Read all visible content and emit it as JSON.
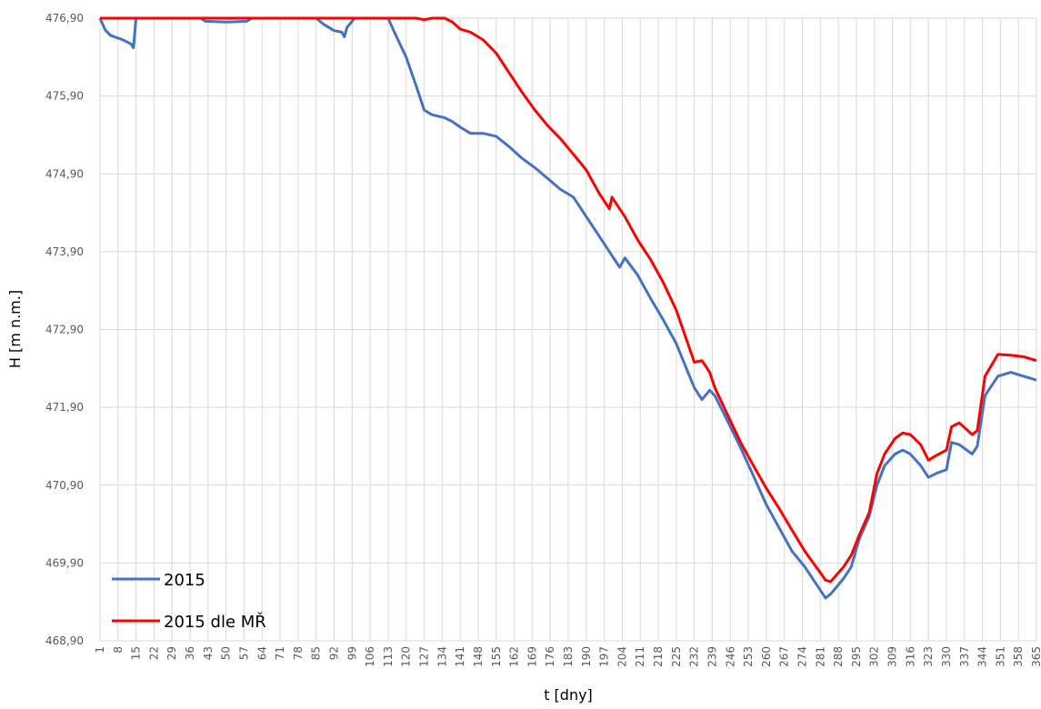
{
  "chart_data": {
    "type": "line",
    "xlabel": "t [dny]",
    "ylabel": "H [m n.m.]",
    "x": [
      1,
      3,
      5,
      10,
      13,
      14,
      15,
      30,
      40,
      42,
      50,
      58,
      60,
      85,
      88,
      92,
      95,
      96,
      97,
      100,
      113,
      115,
      120,
      124,
      127,
      130,
      135,
      138,
      141,
      145,
      150,
      155,
      160,
      165,
      170,
      175,
      180,
      185,
      190,
      195,
      199,
      200,
      203,
      205,
      210,
      215,
      220,
      225,
      232,
      235,
      238,
      240,
      245,
      250,
      255,
      260,
      265,
      270,
      275,
      280,
      283,
      285,
      290,
      293,
      296,
      300,
      303,
      306,
      310,
      313,
      316,
      320,
      323,
      326,
      330,
      332,
      335,
      340,
      342,
      345,
      350,
      355,
      360,
      365
    ],
    "series": [
      {
        "name": "2015",
        "color": "#4472c4",
        "values": [
          476.9,
          476.75,
          476.68,
          476.62,
          476.57,
          476.52,
          476.9,
          476.9,
          476.9,
          476.86,
          476.85,
          476.86,
          476.9,
          476.9,
          476.82,
          476.74,
          476.72,
          476.66,
          476.78,
          476.9,
          476.9,
          476.75,
          476.4,
          476.02,
          475.72,
          475.66,
          475.62,
          475.57,
          475.5,
          475.42,
          475.42,
          475.38,
          475.25,
          475.1,
          474.98,
          474.84,
          474.7,
          474.6,
          474.35,
          474.1,
          473.9,
          473.85,
          473.7,
          473.82,
          473.6,
          473.3,
          473.02,
          472.72,
          472.15,
          472.0,
          472.12,
          472.05,
          471.72,
          471.38,
          471.02,
          470.65,
          470.35,
          470.05,
          469.85,
          469.6,
          469.45,
          469.5,
          469.7,
          469.85,
          470.2,
          470.5,
          470.9,
          471.15,
          471.3,
          471.35,
          471.3,
          471.15,
          471.0,
          471.05,
          471.1,
          471.45,
          471.42,
          471.3,
          471.4,
          472.05,
          472.3,
          472.35,
          472.3,
          472.25
        ]
      },
      {
        "name": "2015 dle MŘ",
        "color": "#ff0000",
        "values": [
          476.9,
          476.9,
          476.9,
          476.9,
          476.9,
          476.9,
          476.9,
          476.9,
          476.9,
          476.9,
          476.9,
          476.9,
          476.9,
          476.9,
          476.9,
          476.9,
          476.9,
          476.9,
          476.9,
          476.9,
          476.9,
          476.9,
          476.9,
          476.9,
          476.88,
          476.9,
          476.9,
          476.85,
          476.76,
          476.72,
          476.62,
          476.45,
          476.2,
          475.95,
          475.72,
          475.52,
          475.35,
          475.15,
          474.95,
          474.65,
          474.45,
          474.6,
          474.45,
          474.35,
          474.05,
          473.8,
          473.5,
          473.15,
          472.48,
          472.5,
          472.35,
          472.15,
          471.8,
          471.45,
          471.15,
          470.86,
          470.6,
          470.32,
          470.05,
          469.82,
          469.68,
          469.66,
          469.85,
          470.0,
          470.25,
          470.55,
          471.05,
          471.3,
          471.5,
          471.57,
          471.55,
          471.42,
          471.22,
          471.28,
          471.35,
          471.65,
          471.7,
          471.55,
          471.6,
          472.3,
          472.58,
          472.57,
          472.55,
          472.5
        ]
      }
    ],
    "xlim": [
      1,
      365
    ],
    "xticks": [
      1,
      8,
      15,
      22,
      29,
      36,
      43,
      50,
      57,
      64,
      71,
      78,
      85,
      92,
      99,
      106,
      113,
      120,
      127,
      134,
      141,
      148,
      155,
      162,
      169,
      176,
      183,
      190,
      197,
      204,
      211,
      218,
      225,
      232,
      239,
      246,
      253,
      260,
      267,
      274,
      281,
      288,
      295,
      302,
      309,
      316,
      323,
      330,
      337,
      344,
      351,
      358,
      365
    ],
    "ylim": [
      468.9,
      476.9
    ],
    "yticks": [
      {
        "value": 468.9,
        "label": "468,90"
      },
      {
        "value": 469.9,
        "label": "469,90"
      },
      {
        "value": 470.9,
        "label": "470,90"
      },
      {
        "value": 471.9,
        "label": "471,90"
      },
      {
        "value": 472.9,
        "label": "472,90"
      },
      {
        "value": 473.9,
        "label": "473,90"
      },
      {
        "value": 474.9,
        "label": "474,90"
      },
      {
        "value": 475.9,
        "label": "475,90"
      },
      {
        "value": 476.9,
        "label": "476,90"
      }
    ],
    "grid": true,
    "legend": "lower left"
  }
}
